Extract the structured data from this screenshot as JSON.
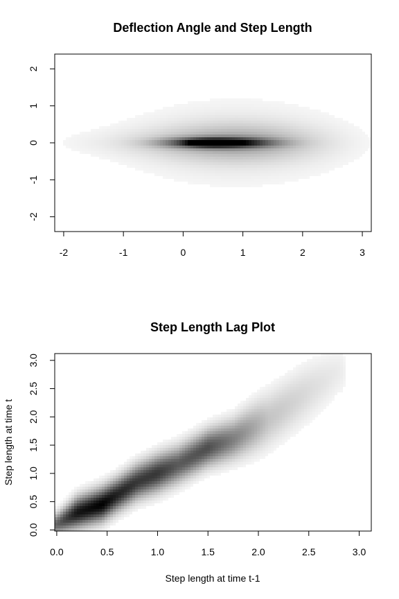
{
  "chart_data": [
    {
      "type": "heatmap",
      "title": "Deflection Angle and Step Length",
      "xlabel": "",
      "ylabel": "",
      "xlim": [
        -2.15,
        3.15
      ],
      "ylim": [
        -2.4,
        2.4
      ],
      "x_ticks": [
        -2,
        -1,
        0,
        1,
        2,
        3
      ],
      "y_ticks": [
        -2,
        -1,
        0,
        1,
        2
      ],
      "x_tick_labels": [
        "-2",
        "-1",
        "0",
        "1",
        "2",
        "3"
      ],
      "y_tick_labels": [
        "-2",
        "-1",
        "0",
        "1",
        "2"
      ],
      "colormap": "white-to-black",
      "density_components": [
        {
          "cx": 0.6,
          "cy": 0.0,
          "sx": 0.55,
          "sy": 0.09,
          "w": 1.0
        },
        {
          "cx": 0.35,
          "cy": 0.0,
          "sx": 0.18,
          "sy": 0.05,
          "w": 0.55
        },
        {
          "cx": 0.9,
          "cy": 0.0,
          "sx": 0.85,
          "sy": 0.32,
          "w": 0.22
        },
        {
          "cx": 0.9,
          "cy": 0.0,
          "sx": 1.2,
          "sy": 0.75,
          "w": 0.07
        },
        {
          "cx": -0.2,
          "cy": 0.0,
          "sx": 1.2,
          "sy": 0.25,
          "w": 0.05
        }
      ]
    },
    {
      "type": "heatmap",
      "title": "Step Length Lag Plot",
      "xlabel": "Step length at time t-1",
      "ylabel": "Step length at time t",
      "xlim": [
        -0.02,
        3.12
      ],
      "ylim": [
        -0.02,
        3.12
      ],
      "x_ticks": [
        0.0,
        0.5,
        1.0,
        1.5,
        2.0,
        2.5,
        3.0
      ],
      "y_ticks": [
        0.0,
        0.5,
        1.0,
        1.5,
        2.0,
        2.5,
        3.0
      ],
      "x_tick_labels": [
        "0.0",
        "0.5",
        "1.0",
        "1.5",
        "2.0",
        "2.5",
        "3.0"
      ],
      "y_tick_labels": [
        "0.0",
        "0.5",
        "1.0",
        "1.5",
        "2.0",
        "2.5",
        "3.0"
      ],
      "colormap": "white-to-black",
      "density_ridge": {
        "along_x": [
          0.0,
          0.2,
          0.45,
          0.6,
          0.8,
          1.0,
          1.2,
          1.5,
          1.75,
          2.1,
          2.5,
          2.8
        ],
        "ridge_y": [
          0.1,
          0.3,
          0.45,
          0.62,
          0.85,
          1.0,
          1.15,
          1.45,
          1.6,
          1.95,
          2.45,
          2.8
        ],
        "intensity": [
          0.55,
          0.9,
          1.0,
          0.85,
          0.75,
          0.75,
          0.6,
          0.65,
          0.45,
          0.18,
          0.1,
          0.05
        ],
        "spread": [
          0.12,
          0.17,
          0.18,
          0.18,
          0.19,
          0.2,
          0.2,
          0.2,
          0.22,
          0.3,
          0.32,
          0.28
        ]
      }
    }
  ]
}
